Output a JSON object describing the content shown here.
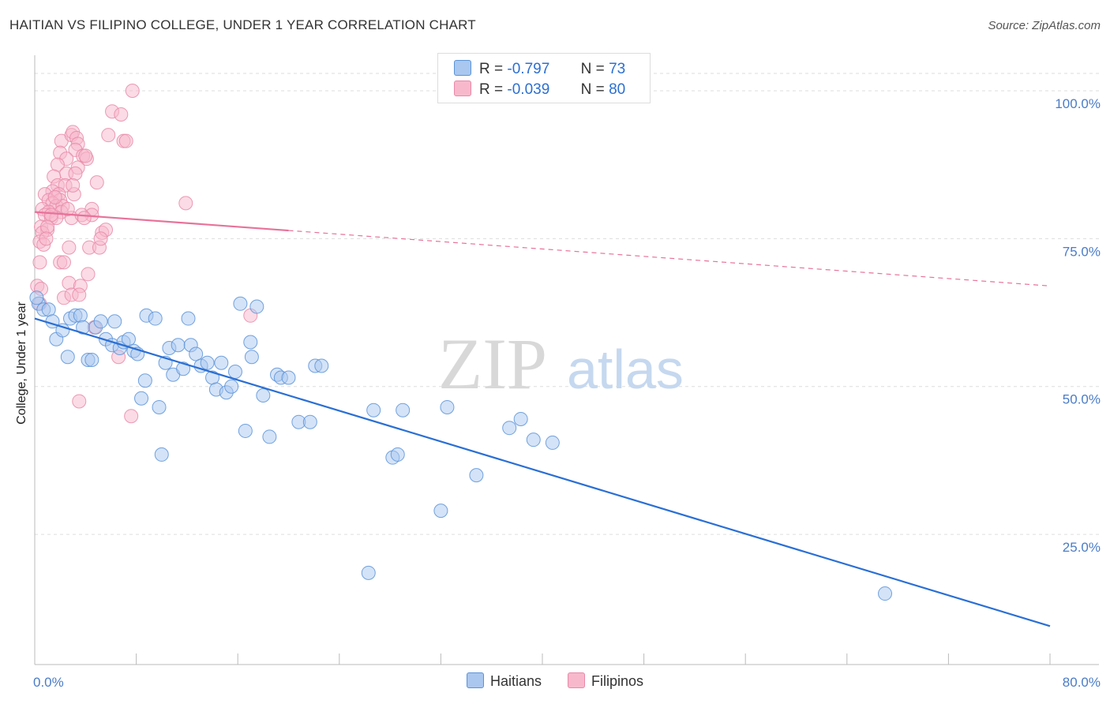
{
  "title": "HAITIAN VS FILIPINO COLLEGE, UNDER 1 YEAR CORRELATION CHART",
  "source": "Source: ZipAtlas.com",
  "watermark": {
    "zip": "ZIP",
    "atlas": "atlas"
  },
  "colors": {
    "haitian_fill": "#a9c7ef",
    "haitian_stroke": "#5b93d9",
    "haitian_line": "#2a6fd4",
    "filipino_fill": "#f8b8cc",
    "filipino_stroke": "#e889a8",
    "filipino_line": "#e8729a",
    "tick_text": "#4a7cc7",
    "grid": "#dddddd"
  },
  "legend": {
    "r_label": "R =",
    "n_label": "N =",
    "haitians": {
      "r": "-0.797",
      "n": "73"
    },
    "filipinos": {
      "r": "-0.039",
      "n": "80"
    }
  },
  "bottom_legend": {
    "haitians": "Haitians",
    "filipinos": "Filipinos"
  },
  "chart_data": {
    "type": "scatter",
    "title": "HAITIAN VS FILIPINO COLLEGE, UNDER 1 YEAR CORRELATION CHART",
    "xlabel": "",
    "ylabel": "College, Under 1 year",
    "xlim": [
      0,
      80
    ],
    "ylim": [
      3,
      106
    ],
    "x_tick_labels": [
      "0.0%",
      "80.0%"
    ],
    "y_ticks": [
      {
        "value": 100,
        "label": "100.0%"
      },
      {
        "value": 75,
        "label": "75.0%"
      },
      {
        "value": 50,
        "label": "50.0%"
      },
      {
        "value": 25,
        "label": "25.0%"
      }
    ],
    "series": [
      {
        "name": "Haitians",
        "r": -0.797,
        "n": 73,
        "trend": {
          "x0": 0,
          "y0": 61.5,
          "x1": 80,
          "y1": 9.5,
          "solid_to": 80
        },
        "points": [
          [
            0.3,
            64
          ],
          [
            0.7,
            63
          ],
          [
            1.1,
            63
          ],
          [
            1.4,
            61
          ],
          [
            1.7,
            58
          ],
          [
            2.2,
            59.5
          ],
          [
            2.6,
            55
          ],
          [
            2.8,
            61.5
          ],
          [
            3.2,
            62
          ],
          [
            3.6,
            62
          ],
          [
            3.8,
            60
          ],
          [
            4.2,
            54.5
          ],
          [
            4.5,
            54.5
          ],
          [
            4.8,
            60
          ],
          [
            5.2,
            61
          ],
          [
            5.6,
            58
          ],
          [
            6.1,
            57
          ],
          [
            6.3,
            61
          ],
          [
            6.7,
            56.5
          ],
          [
            7.0,
            57.5
          ],
          [
            7.4,
            58
          ],
          [
            7.8,
            56
          ],
          [
            8.1,
            55.5
          ],
          [
            8.4,
            48
          ],
          [
            8.7,
            51
          ],
          [
            8.8,
            62
          ],
          [
            9.5,
            61.5
          ],
          [
            9.8,
            46.5
          ],
          [
            10.0,
            38.5
          ],
          [
            10.3,
            54
          ],
          [
            10.6,
            56.5
          ],
          [
            10.9,
            52
          ],
          [
            11.3,
            57
          ],
          [
            11.7,
            53
          ],
          [
            12.1,
            61.5
          ],
          [
            12.3,
            57
          ],
          [
            12.7,
            55.5
          ],
          [
            13.1,
            53.5
          ],
          [
            13.6,
            54
          ],
          [
            14.0,
            51.5
          ],
          [
            14.3,
            49.5
          ],
          [
            14.7,
            54
          ],
          [
            15.1,
            49
          ],
          [
            15.5,
            50
          ],
          [
            15.8,
            52.5
          ],
          [
            16.2,
            64
          ],
          [
            16.6,
            42.5
          ],
          [
            17.0,
            57.5
          ],
          [
            17.1,
            55
          ],
          [
            17.5,
            63.5
          ],
          [
            18.0,
            48.5
          ],
          [
            18.5,
            41.5
          ],
          [
            19.1,
            52
          ],
          [
            19.4,
            51.5
          ],
          [
            20.0,
            51.5
          ],
          [
            20.8,
            44
          ],
          [
            21.7,
            44
          ],
          [
            22.1,
            53.5
          ],
          [
            22.6,
            53.5
          ],
          [
            26.3,
            18.5
          ],
          [
            26.7,
            46
          ],
          [
            28.2,
            38
          ],
          [
            28.6,
            38.5
          ],
          [
            29.0,
            46
          ],
          [
            32.0,
            29
          ],
          [
            32.5,
            46.5
          ],
          [
            34.8,
            35
          ],
          [
            37.4,
            43
          ],
          [
            38.3,
            44.5
          ],
          [
            39.3,
            41
          ],
          [
            40.8,
            40.5
          ],
          [
            67.0,
            15
          ],
          [
            0.15,
            65
          ]
        ]
      },
      {
        "name": "Filipinos",
        "r": -0.039,
        "n": 80,
        "trend": {
          "x0": 0,
          "y0": 79.5,
          "x1": 80,
          "y1": 67.0,
          "solid_to": 20.0
        },
        "points": [
          [
            7.7,
            100
          ],
          [
            6.1,
            96.5
          ],
          [
            6.8,
            96
          ],
          [
            5.8,
            92.5
          ],
          [
            7.0,
            91.5
          ],
          [
            7.2,
            91.5
          ],
          [
            2.1,
            91.5
          ],
          [
            2.9,
            92.5
          ],
          [
            3.0,
            93
          ],
          [
            3.3,
            92
          ],
          [
            3.4,
            91
          ],
          [
            3.2,
            90
          ],
          [
            2.0,
            89.5
          ],
          [
            2.5,
            88.5
          ],
          [
            3.8,
            89
          ],
          [
            4.1,
            88.5
          ],
          [
            3.4,
            87
          ],
          [
            1.8,
            87.5
          ],
          [
            2.5,
            86
          ],
          [
            1.5,
            85.5
          ],
          [
            3.2,
            86
          ],
          [
            4.9,
            84.5
          ],
          [
            1.8,
            84
          ],
          [
            2.4,
            84
          ],
          [
            1.4,
            83
          ],
          [
            0.8,
            82.5
          ],
          [
            1.9,
            82.5
          ],
          [
            3.1,
            82.5
          ],
          [
            1.1,
            81.5
          ],
          [
            2.0,
            81.5
          ],
          [
            1.4,
            81
          ],
          [
            1.7,
            80.5
          ],
          [
            2.2,
            80.5
          ],
          [
            11.9,
            81
          ],
          [
            0.6,
            80
          ],
          [
            1.1,
            79.5
          ],
          [
            2.1,
            79.5
          ],
          [
            4.5,
            80
          ],
          [
            0.8,
            79
          ],
          [
            1.3,
            78.5
          ],
          [
            1.7,
            78.5
          ],
          [
            2.9,
            78.5
          ],
          [
            4.5,
            79
          ],
          [
            3.7,
            79
          ],
          [
            3.9,
            78.5
          ],
          [
            0.5,
            77
          ],
          [
            1.0,
            76.5
          ],
          [
            0.6,
            76
          ],
          [
            5.3,
            76
          ],
          [
            5.6,
            76.5
          ],
          [
            0.4,
            74.5
          ],
          [
            0.7,
            74
          ],
          [
            2.7,
            73.5
          ],
          [
            4.3,
            73.5
          ],
          [
            5.1,
            73.5
          ],
          [
            0.4,
            71
          ],
          [
            2.0,
            71
          ],
          [
            2.3,
            71
          ],
          [
            4.2,
            69
          ],
          [
            0.2,
            67
          ],
          [
            0.5,
            66.5
          ],
          [
            2.7,
            67.5
          ],
          [
            3.6,
            67
          ],
          [
            2.3,
            65
          ],
          [
            2.9,
            65.5
          ],
          [
            3.5,
            65.5
          ],
          [
            0.4,
            64
          ],
          [
            4.7,
            60
          ],
          [
            6.6,
            55
          ],
          [
            17.0,
            62
          ],
          [
            3.5,
            47.5
          ],
          [
            7.6,
            45
          ],
          [
            1.3,
            79
          ],
          [
            1.0,
            77
          ],
          [
            2.6,
            80
          ],
          [
            1.6,
            82
          ],
          [
            0.9,
            75
          ],
          [
            3.0,
            84
          ],
          [
            4.0,
            89
          ],
          [
            5.2,
            75
          ]
        ]
      }
    ]
  }
}
